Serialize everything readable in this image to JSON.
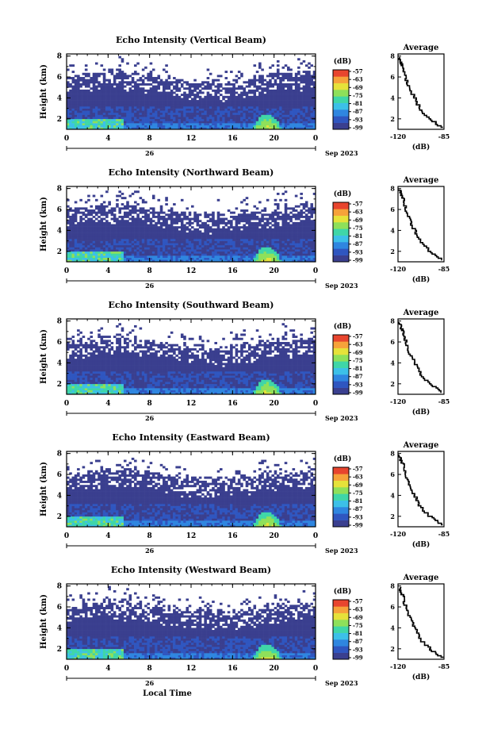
{
  "figure": {
    "date_label": "Sep 2023",
    "day_label": "26",
    "xlabel_bottom": "Local Time",
    "colorbar_unit": "(dB)",
    "colorbar_ticks": [
      "-57",
      "-63",
      "-69",
      "-75",
      "-81",
      "-87",
      "-93",
      "-99"
    ],
    "colorbar_colors": [
      "#3a3f8f",
      "#2f56c0",
      "#2f86e0",
      "#3cc0e8",
      "#3fd6a8",
      "#8ee05a",
      "#e6e23a",
      "#f6a23a",
      "#e8452e"
    ],
    "xticks": [
      "0",
      "4",
      "8",
      "12",
      "16",
      "20",
      "0"
    ],
    "yticks_main": [
      "2",
      "4",
      "6",
      "8"
    ],
    "yticks_avg": [
      "2",
      "4",
      "6",
      "8"
    ],
    "avg_xticks": [
      "-120",
      "-85"
    ],
    "avg_title": "Average",
    "avg_xlabel": "(dB)",
    "ylabel": "Height (km)"
  },
  "chart_data": [
    {
      "type": "heatmap",
      "title": "Echo Intensity (Vertical Beam)",
      "xlabel": "",
      "ylabel": "Height (km)",
      "xlim_hours": [
        0,
        24
      ],
      "ylim_km": [
        1,
        8.2
      ],
      "clim_db": [
        -99,
        -57
      ],
      "average_profile": {
        "title": "Average",
        "xlabel": "(dB)",
        "xlim": [
          -120,
          -85
        ],
        "height_km": [
          1.2,
          2,
          3,
          4,
          5,
          6,
          7,
          7.5,
          8
        ],
        "db": [
          -86,
          -95,
          -103,
          -107,
          -111,
          -114,
          -116,
          -118,
          -119
        ]
      }
    },
    {
      "type": "heatmap",
      "title": "Echo Intensity (Northward Beam)",
      "xlabel": "",
      "ylabel": "Height (km)",
      "xlim_hours": [
        0,
        24
      ],
      "ylim_km": [
        1,
        8.2
      ],
      "clim_db": [
        -99,
        -57
      ],
      "average_profile": {
        "title": "Average",
        "xlabel": "(dB)",
        "xlim": [
          -120,
          -85
        ],
        "height_km": [
          1.2,
          2,
          3,
          4,
          5,
          6,
          7,
          7.5,
          8
        ],
        "db": [
          -86,
          -95,
          -103,
          -107,
          -111,
          -114,
          -116,
          -118,
          -119
        ]
      }
    },
    {
      "type": "heatmap",
      "title": "Echo Intensity (Southward Beam)",
      "xlabel": "",
      "ylabel": "Height (km)",
      "xlim_hours": [
        0,
        24
      ],
      "ylim_km": [
        1,
        8.2
      ],
      "clim_db": [
        -99,
        -57
      ],
      "average_profile": {
        "title": "Average",
        "xlabel": "(dB)",
        "xlim": [
          -120,
          -85
        ],
        "height_km": [
          1.2,
          2,
          3,
          4,
          5,
          6,
          7,
          7.5,
          8
        ],
        "db": [
          -86,
          -95,
          -103,
          -107,
          -111,
          -114,
          -116,
          -118,
          -119
        ]
      }
    },
    {
      "type": "heatmap",
      "title": "Echo Intensity (Eastward Beam)",
      "xlabel": "",
      "ylabel": "Height (km)",
      "xlim_hours": [
        0,
        24
      ],
      "ylim_km": [
        1,
        8.2
      ],
      "clim_db": [
        -99,
        -57
      ],
      "average_profile": {
        "title": "Average",
        "xlabel": "(dB)",
        "xlim": [
          -120,
          -85
        ],
        "height_km": [
          1.2,
          2,
          3,
          4,
          5,
          6,
          7,
          7.5,
          8
        ],
        "db": [
          -86,
          -95,
          -103,
          -107,
          -111,
          -114,
          -116,
          -118,
          -119
        ]
      }
    },
    {
      "type": "heatmap",
      "title": "Echo Intensity (Westward Beam)",
      "xlabel": "Local Time",
      "ylabel": "Height (km)",
      "xlim_hours": [
        0,
        24
      ],
      "ylim_km": [
        1,
        8.2
      ],
      "clim_db": [
        -99,
        -57
      ],
      "average_profile": {
        "title": "Average",
        "xlabel": "(dB)",
        "xlim": [
          -120,
          -85
        ],
        "height_km": [
          1.2,
          2,
          3,
          4,
          5,
          6,
          7,
          7.5,
          8
        ],
        "db": [
          -86,
          -95,
          -103,
          -107,
          -111,
          -114,
          -116,
          -118,
          -119
        ]
      }
    }
  ]
}
